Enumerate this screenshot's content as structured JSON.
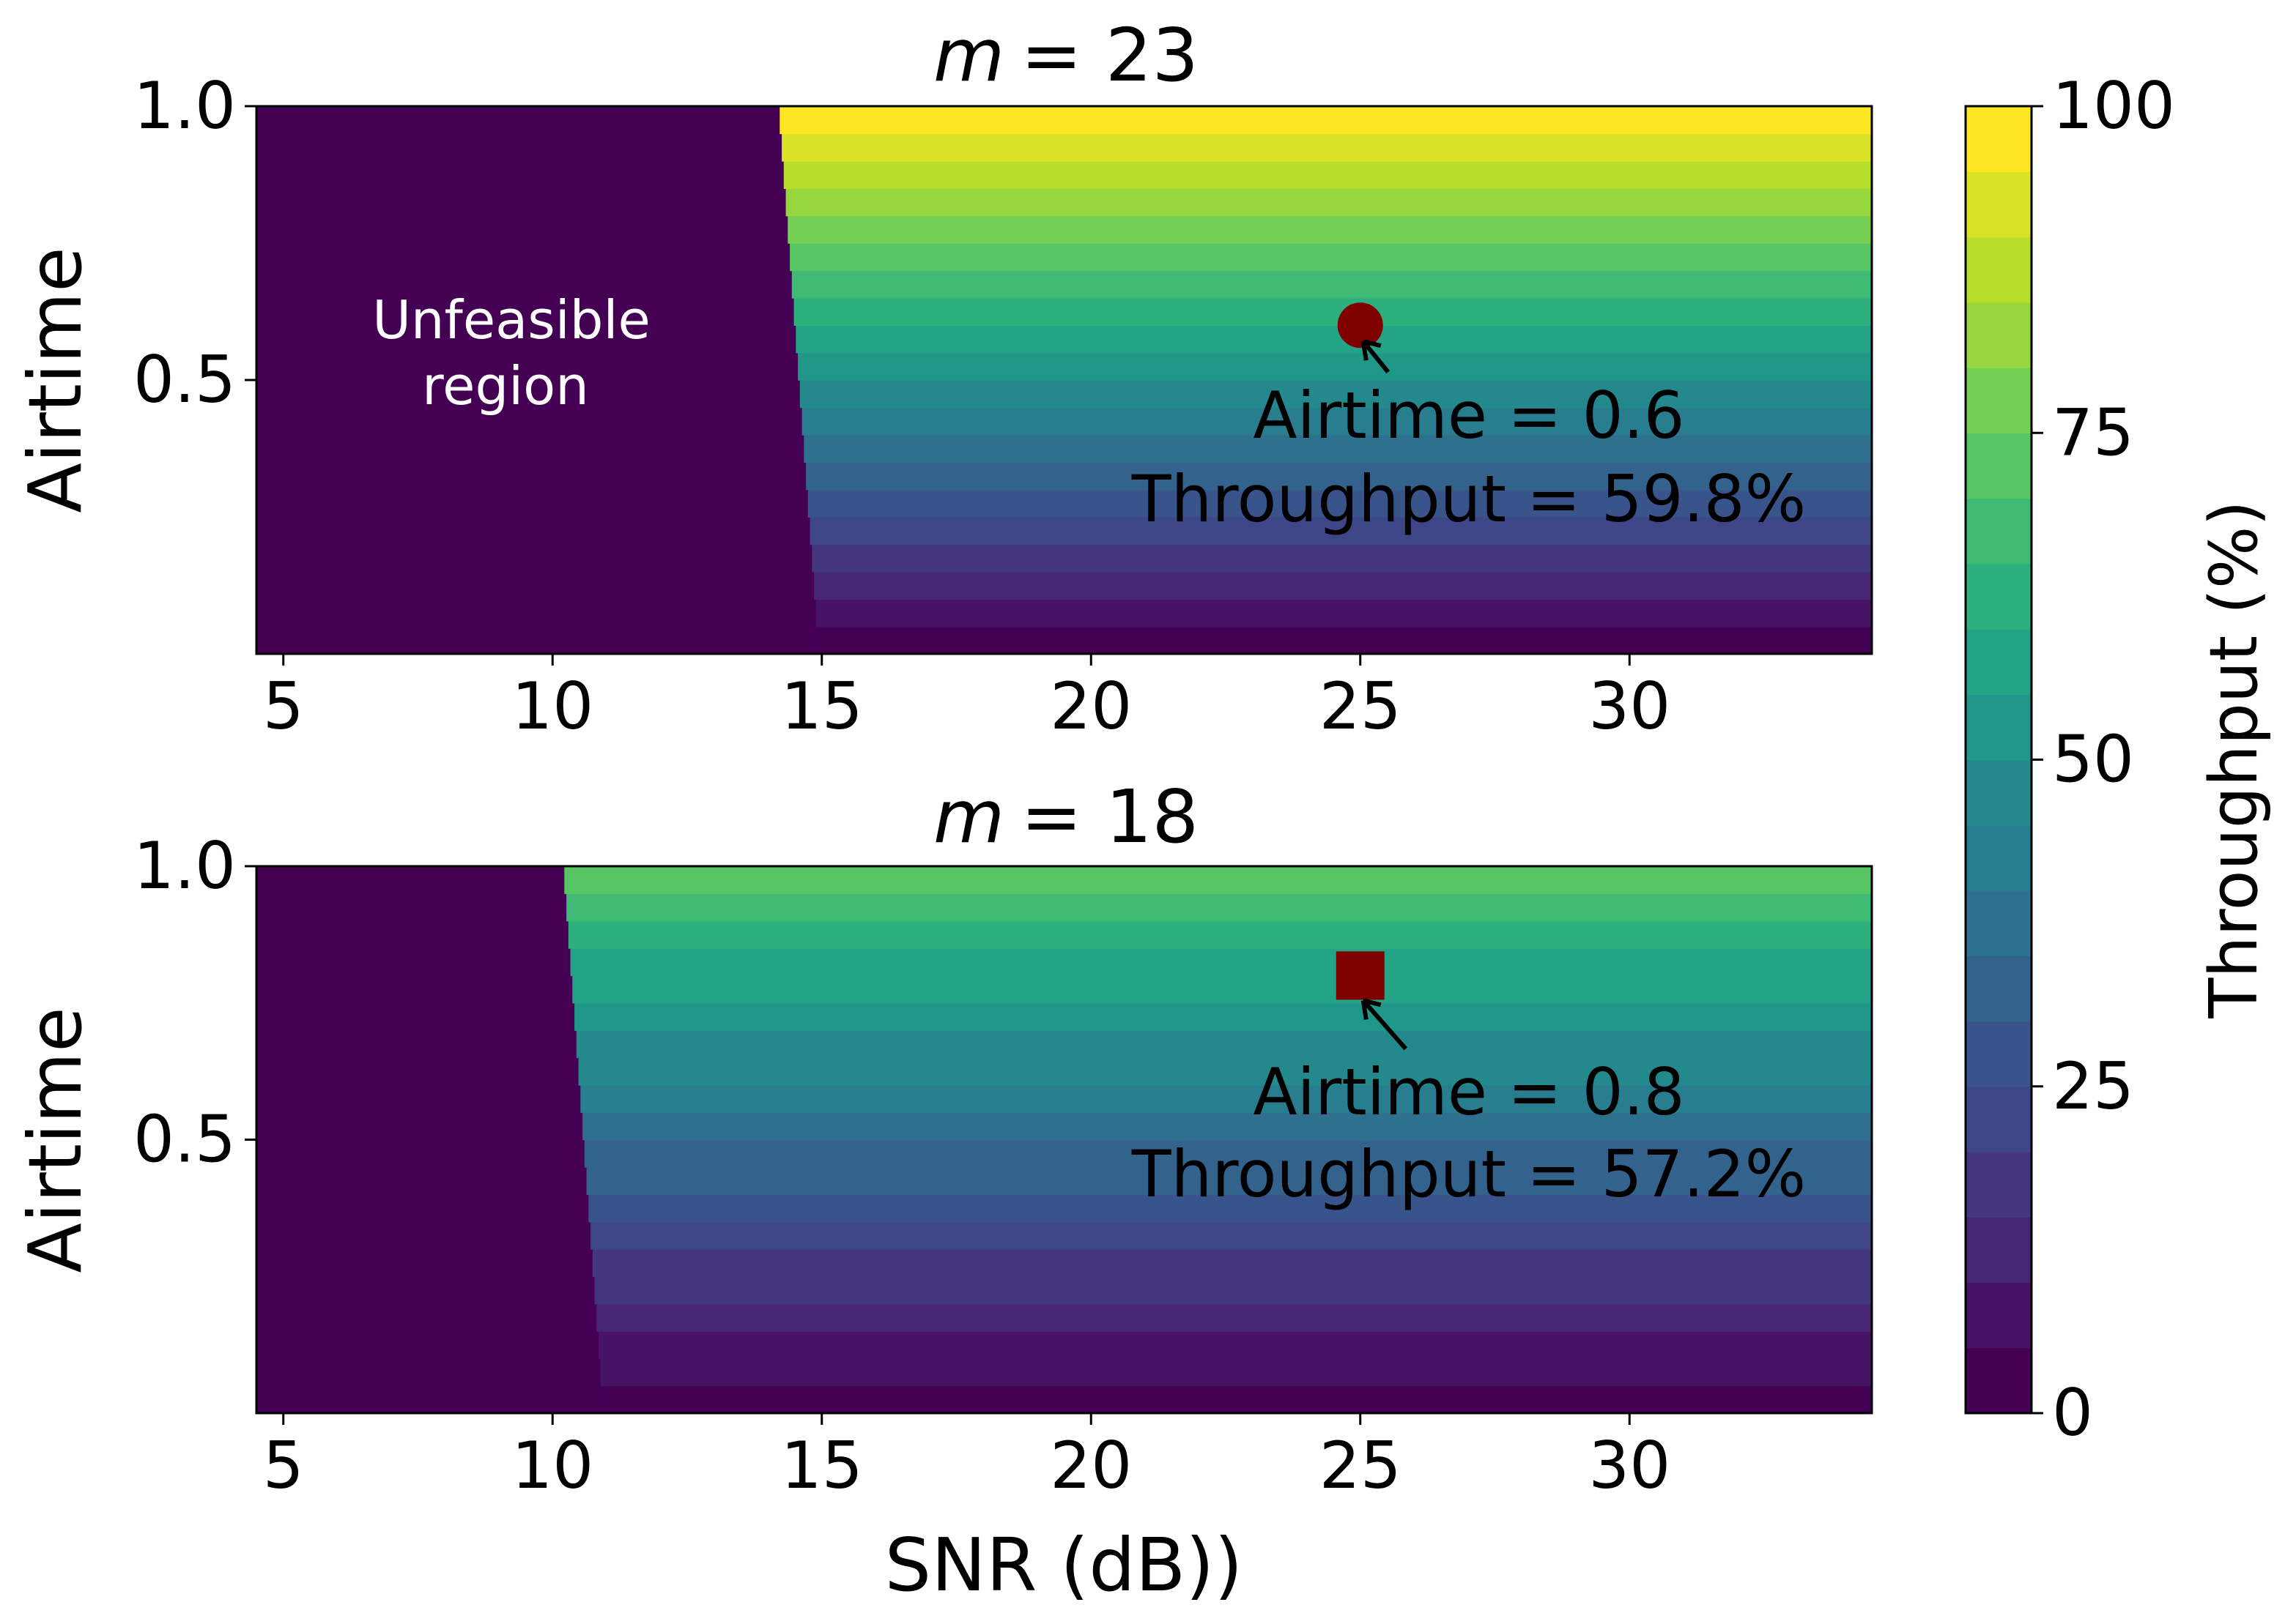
{
  "chart_data": [
    {
      "type": "heatmap",
      "title_var": "m",
      "title_value": "= 23",
      "ylabel": "Airtime",
      "xlabel": "",
      "xlim": [
        4.5,
        34.5
      ],
      "ylim": [
        0,
        1.0
      ],
      "xticks": [
        "5",
        "10",
        "15",
        "20",
        "25",
        "30"
      ],
      "yticks": [
        "0.5",
        "1.0"
      ],
      "feasibility_threshold_snr": 14.2,
      "max_throughput_pct": 100,
      "region_label_line1": "Unfeasible",
      "region_label_line2": "region",
      "marker": {
        "shape": "circle",
        "snr": 25,
        "airtime": 0.6,
        "color": "#800000"
      },
      "annotation_line1": "Airtime = 0.6",
      "annotation_line2": "Throughput = 59.8%"
    },
    {
      "type": "heatmap",
      "title_var": "m",
      "title_value": "= 18",
      "ylabel": "Airtime",
      "xlabel": "SNR (dB))",
      "xlim": [
        4.5,
        34.5
      ],
      "ylim": [
        0,
        1.0
      ],
      "xticks": [
        "5",
        "10",
        "15",
        "20",
        "25",
        "30"
      ],
      "yticks": [
        "0.5",
        "1.0"
      ],
      "feasibility_threshold_snr": 10.2,
      "max_throughput_pct": 72,
      "marker": {
        "shape": "square",
        "snr": 25,
        "airtime": 0.8,
        "color": "#800000"
      },
      "annotation_line1": "Airtime = 0.8",
      "annotation_line2": "Throughput = 57.2%"
    }
  ],
  "colorbar": {
    "label": "Throughput (%)",
    "ticks": [
      "0",
      "25",
      "50",
      "75",
      "100"
    ],
    "range": [
      0,
      100
    ],
    "levels": 20,
    "colormap": "viridis"
  }
}
